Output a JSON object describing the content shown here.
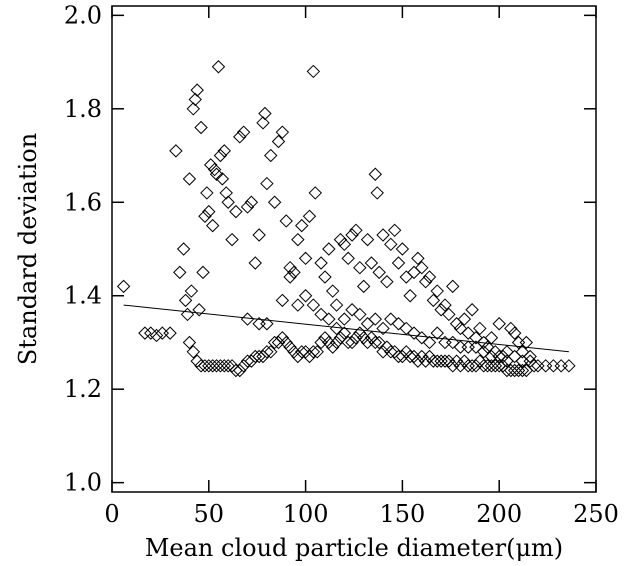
{
  "chart_data": {
    "type": "scatter",
    "title": "",
    "xlabel": "Mean cloud particle diameter(μm)",
    "ylabel": "Standard deviation",
    "xlim": [
      0,
      250
    ],
    "ylim": [
      0.98,
      2.02
    ],
    "x_ticks": [
      0,
      50,
      100,
      150,
      200,
      250
    ],
    "x_tick_labels": [
      "0",
      "50",
      "100",
      "150",
      "200",
      "250"
    ],
    "y_ticks": [
      1.0,
      1.2,
      1.4,
      1.6,
      1.8,
      2.0
    ],
    "y_tick_labels": [
      "1.0",
      "1.2",
      "1.4",
      "1.6",
      "1.8",
      "2.0"
    ],
    "grid": false,
    "marker": "open-diamond",
    "series": [
      {
        "points": [
          [
            6,
            1.42
          ],
          [
            17,
            1.32
          ],
          [
            20,
            1.32
          ],
          [
            23,
            1.315
          ],
          [
            26,
            1.32
          ],
          [
            30,
            1.32
          ],
          [
            33,
            1.71
          ],
          [
            35,
            1.45
          ],
          [
            37,
            1.5
          ],
          [
            38,
            1.39
          ],
          [
            39,
            1.36
          ],
          [
            40,
            1.65
          ],
          [
            41,
            1.41
          ],
          [
            42,
            1.8
          ],
          [
            43,
            1.82
          ],
          [
            44,
            1.84
          ],
          [
            45,
            1.37
          ],
          [
            46,
            1.76
          ],
          [
            47,
            1.45
          ],
          [
            48,
            1.57
          ],
          [
            49,
            1.62
          ],
          [
            50,
            1.58
          ],
          [
            51,
            1.68
          ],
          [
            52,
            1.55
          ],
          [
            53,
            1.67
          ],
          [
            54,
            1.66
          ],
          [
            55,
            1.89
          ],
          [
            56,
            1.7
          ],
          [
            57,
            1.65
          ],
          [
            58,
            1.71
          ],
          [
            59,
            1.62
          ],
          [
            60,
            1.6
          ],
          [
            62,
            1.52
          ],
          [
            64,
            1.58
          ],
          [
            66,
            1.74
          ],
          [
            68,
            1.75
          ],
          [
            70,
            1.59
          ],
          [
            72,
            1.6
          ],
          [
            74,
            1.47
          ],
          [
            76,
            1.53
          ],
          [
            78,
            1.77
          ],
          [
            79,
            1.79
          ],
          [
            80,
            1.64
          ],
          [
            82,
            1.7
          ],
          [
            84,
            1.6
          ],
          [
            86,
            1.73
          ],
          [
            88,
            1.75
          ],
          [
            90,
            1.56
          ],
          [
            92,
            1.46
          ],
          [
            94,
            1.45
          ],
          [
            96,
            1.52
          ],
          [
            98,
            1.55
          ],
          [
            100,
            1.48
          ],
          [
            102,
            1.57
          ],
          [
            104,
            1.88
          ],
          [
            105,
            1.62
          ],
          [
            108,
            1.47
          ],
          [
            110,
            1.44
          ],
          [
            112,
            1.5
          ],
          [
            114,
            1.41
          ],
          [
            116,
            1.38
          ],
          [
            118,
            1.52
          ],
          [
            120,
            1.51
          ],
          [
            122,
            1.48
          ],
          [
            124,
            1.53
          ],
          [
            126,
            1.54
          ],
          [
            128,
            1.46
          ],
          [
            130,
            1.42
          ],
          [
            132,
            1.52
          ],
          [
            134,
            1.47
          ],
          [
            136,
            1.66
          ],
          [
            137,
            1.62
          ],
          [
            138,
            1.45
          ],
          [
            140,
            1.53
          ],
          [
            142,
            1.43
          ],
          [
            144,
            1.51
          ],
          [
            146,
            1.54
          ],
          [
            148,
            1.47
          ],
          [
            150,
            1.5
          ],
          [
            152,
            1.44
          ],
          [
            154,
            1.4
          ],
          [
            156,
            1.45
          ],
          [
            158,
            1.48
          ],
          [
            160,
            1.46
          ],
          [
            162,
            1.43
          ],
          [
            164,
            1.44
          ],
          [
            166,
            1.39
          ],
          [
            168,
            1.41
          ],
          [
            170,
            1.37
          ],
          [
            172,
            1.38
          ],
          [
            174,
            1.36
          ],
          [
            176,
            1.42
          ],
          [
            178,
            1.34
          ],
          [
            180,
            1.33
          ],
          [
            182,
            1.35
          ],
          [
            184,
            1.32
          ],
          [
            186,
            1.37
          ],
          [
            188,
            1.31
          ],
          [
            190,
            1.33
          ],
          [
            192,
            1.3
          ],
          [
            194,
            1.29
          ],
          [
            196,
            1.31
          ],
          [
            198,
            1.28
          ],
          [
            200,
            1.34
          ],
          [
            202,
            1.27
          ],
          [
            204,
            1.28
          ],
          [
            206,
            1.33
          ],
          [
            208,
            1.32
          ],
          [
            210,
            1.3
          ],
          [
            212,
            1.28
          ],
          [
            214,
            1.3
          ],
          [
            216,
            1.26
          ],
          [
            218,
            1.25
          ],
          [
            220,
            1.25
          ],
          [
            224,
            1.25
          ],
          [
            228,
            1.25
          ],
          [
            232,
            1.25
          ],
          [
            236,
            1.25
          ],
          [
            40,
            1.3
          ],
          [
            42,
            1.28
          ],
          [
            44,
            1.26
          ],
          [
            46,
            1.25
          ],
          [
            48,
            1.25
          ],
          [
            50,
            1.25
          ],
          [
            52,
            1.25
          ],
          [
            54,
            1.25
          ],
          [
            56,
            1.25
          ],
          [
            58,
            1.25
          ],
          [
            60,
            1.25
          ],
          [
            62,
            1.25
          ],
          [
            64,
            1.24
          ],
          [
            66,
            1.24
          ],
          [
            68,
            1.25
          ],
          [
            70,
            1.26
          ],
          [
            72,
            1.26
          ],
          [
            74,
            1.27
          ],
          [
            76,
            1.27
          ],
          [
            78,
            1.27
          ],
          [
            80,
            1.28
          ],
          [
            82,
            1.28
          ],
          [
            84,
            1.3
          ],
          [
            86,
            1.3
          ],
          [
            88,
            1.31
          ],
          [
            90,
            1.3
          ],
          [
            92,
            1.29
          ],
          [
            94,
            1.28
          ],
          [
            96,
            1.27
          ],
          [
            98,
            1.28
          ],
          [
            100,
            1.28
          ],
          [
            102,
            1.27
          ],
          [
            104,
            1.28
          ],
          [
            106,
            1.28
          ],
          [
            108,
            1.3
          ],
          [
            110,
            1.31
          ],
          [
            112,
            1.3
          ],
          [
            114,
            1.29
          ],
          [
            116,
            1.3
          ],
          [
            118,
            1.31
          ],
          [
            120,
            1.32
          ],
          [
            122,
            1.3
          ],
          [
            124,
            1.3
          ],
          [
            126,
            1.31
          ],
          [
            128,
            1.32
          ],
          [
            130,
            1.31
          ],
          [
            132,
            1.3
          ],
          [
            134,
            1.31
          ],
          [
            136,
            1.3
          ],
          [
            138,
            1.3
          ],
          [
            140,
            1.28
          ],
          [
            142,
            1.29
          ],
          [
            144,
            1.28
          ],
          [
            146,
            1.28
          ],
          [
            148,
            1.27
          ],
          [
            150,
            1.27
          ],
          [
            152,
            1.28
          ],
          [
            154,
            1.27
          ],
          [
            156,
            1.27
          ],
          [
            158,
            1.26
          ],
          [
            160,
            1.27
          ],
          [
            162,
            1.26
          ],
          [
            164,
            1.27
          ],
          [
            166,
            1.26
          ],
          [
            168,
            1.26
          ],
          [
            170,
            1.26
          ],
          [
            172,
            1.26
          ],
          [
            174,
            1.26
          ],
          [
            176,
            1.25
          ],
          [
            178,
            1.26
          ],
          [
            180,
            1.25
          ],
          [
            182,
            1.26
          ],
          [
            184,
            1.25
          ],
          [
            186,
            1.25
          ],
          [
            188,
            1.25
          ],
          [
            190,
            1.26
          ],
          [
            192,
            1.25
          ],
          [
            194,
            1.25
          ],
          [
            196,
            1.25
          ],
          [
            198,
            1.25
          ],
          [
            200,
            1.25
          ],
          [
            202,
            1.25
          ],
          [
            204,
            1.24
          ],
          [
            206,
            1.24
          ],
          [
            208,
            1.24
          ],
          [
            210,
            1.24
          ],
          [
            212,
            1.24
          ],
          [
            214,
            1.24
          ],
          [
            70,
            1.35
          ],
          [
            76,
            1.34
          ],
          [
            80,
            1.34
          ],
          [
            88,
            1.39
          ],
          [
            92,
            1.44
          ],
          [
            96,
            1.38
          ],
          [
            100,
            1.4
          ],
          [
            104,
            1.38
          ],
          [
            108,
            1.36
          ],
          [
            112,
            1.35
          ],
          [
            116,
            1.33
          ],
          [
            120,
            1.35
          ],
          [
            124,
            1.37
          ],
          [
            128,
            1.36
          ],
          [
            132,
            1.34
          ],
          [
            136,
            1.35
          ],
          [
            140,
            1.33
          ],
          [
            144,
            1.35
          ],
          [
            148,
            1.34
          ],
          [
            152,
            1.33
          ],
          [
            156,
            1.32
          ],
          [
            160,
            1.31
          ],
          [
            164,
            1.3
          ],
          [
            168,
            1.32
          ],
          [
            172,
            1.3
          ],
          [
            176,
            1.3
          ],
          [
            180,
            1.29
          ],
          [
            184,
            1.29
          ],
          [
            188,
            1.29
          ],
          [
            192,
            1.28
          ],
          [
            196,
            1.27
          ],
          [
            200,
            1.27
          ],
          [
            204,
            1.26
          ],
          [
            208,
            1.27
          ],
          [
            212,
            1.26
          ],
          [
            216,
            1.27
          ]
        ]
      }
    ],
    "fit_line": {
      "x": [
        6,
        236
      ],
      "y": [
        1.38,
        1.28
      ]
    }
  }
}
